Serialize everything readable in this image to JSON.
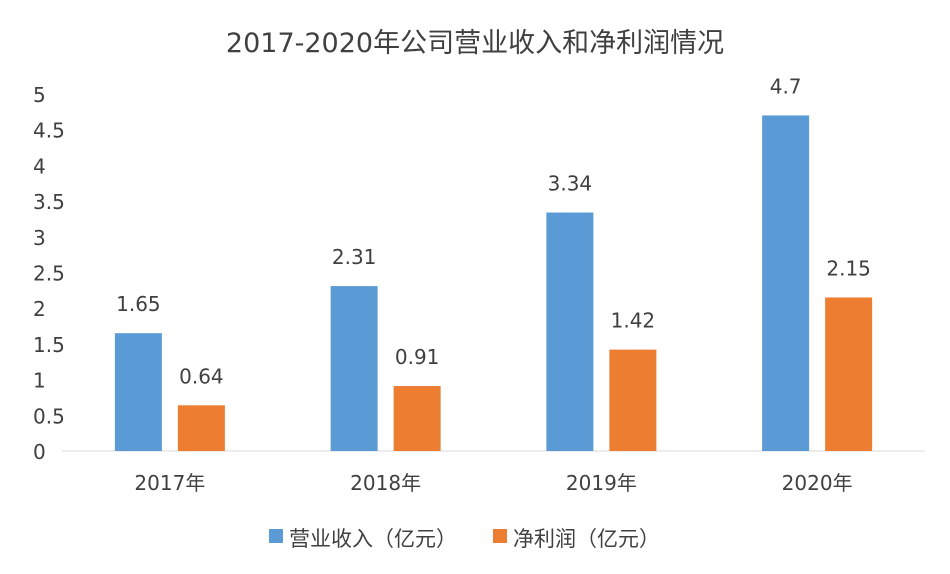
{
  "chart_data": {
    "type": "bar",
    "title": "2017-2020年公司营业收入和净利润情况",
    "categories": [
      "2017年",
      "2018年",
      "2019年",
      "2020年"
    ],
    "series": [
      {
        "name": "营业收入（亿元）",
        "values": [
          1.65,
          2.31,
          3.34,
          4.7
        ],
        "labels": [
          "1.65",
          "2.31",
          "3.34",
          "4.7"
        ],
        "color": "#5B9BD5"
      },
      {
        "name": "净利润（亿元）",
        "values": [
          0.64,
          0.91,
          1.42,
          2.15
        ],
        "labels": [
          "0.64",
          "0.91",
          "1.42",
          "2.15"
        ],
        "color": "#ED7D31"
      }
    ],
    "yticks": [
      "0",
      "0.5",
      "1",
      "1.5",
      "2",
      "2.5",
      "3",
      "3.5",
      "4",
      "4.5",
      "5"
    ],
    "ylim": [
      0,
      5
    ],
    "xlabel": "",
    "ylabel": "",
    "grid": false,
    "legend": "bottom"
  }
}
